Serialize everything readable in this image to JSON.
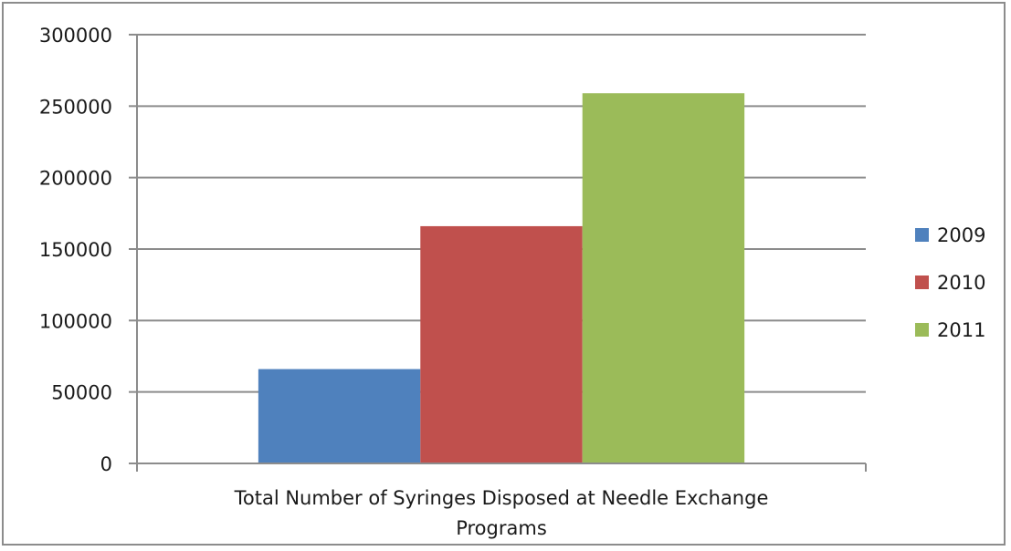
{
  "chart_data": {
    "type": "bar",
    "title": "",
    "xlabel": "",
    "ylabel": "",
    "categories": [
      "Total Number of Syringes Disposed at Needle Exchange Programs"
    ],
    "category_label_lines": [
      "Total Number of Syringes Disposed at Needle Exchange",
      "Programs"
    ],
    "series": [
      {
        "name": "2009",
        "values": [
          66000
        ],
        "color": "#4f81bd"
      },
      {
        "name": "2010",
        "values": [
          166000
        ],
        "color": "#c0504d"
      },
      {
        "name": "2011",
        "values": [
          259000
        ],
        "color": "#9bbb59"
      }
    ],
    "ylim": [
      0,
      300000
    ],
    "yticks": [
      0,
      50000,
      100000,
      150000,
      200000,
      250000,
      300000
    ],
    "ytick_labels": [
      "0",
      "50000",
      "100000",
      "150000",
      "200000",
      "250000",
      "300000"
    ],
    "grid": true,
    "legend_position": "right"
  }
}
